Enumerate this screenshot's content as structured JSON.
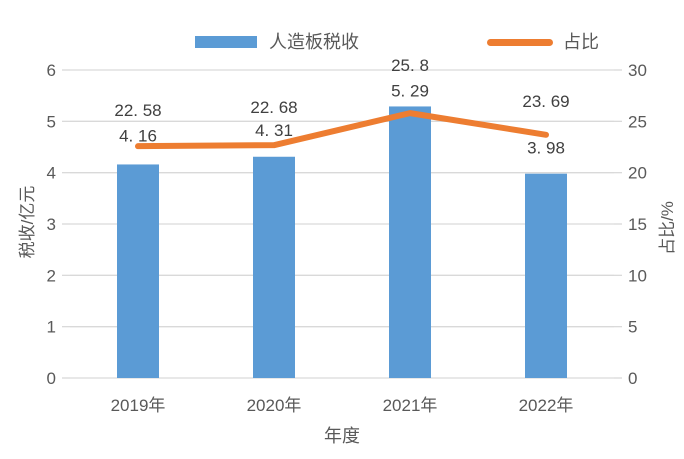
{
  "chart_data": {
    "type": "combo",
    "categories": [
      "2019年",
      "2020年",
      "2021年",
      "2022年"
    ],
    "series": [
      {
        "name": "人造板税收",
        "type": "bar",
        "axis": "left",
        "values": [
          4.16,
          4.31,
          5.29,
          3.98
        ],
        "color": "#5B9BD5"
      },
      {
        "name": "占比",
        "type": "line",
        "axis": "right",
        "values": [
          22.58,
          22.68,
          25.8,
          23.69
        ],
        "color": "#ED7D31"
      }
    ],
    "x_axis": {
      "title": "年度"
    },
    "left_axis": {
      "title": "税收/亿元",
      "min": 0,
      "max": 6,
      "step": 1,
      "tick_labels": [
        "0",
        "1",
        "2",
        "3",
        "4",
        "5",
        "6"
      ]
    },
    "right_axis": {
      "title": "占比/%",
      "min": 0,
      "max": 30,
      "step": 5,
      "tick_labels": [
        "0",
        "5",
        "10",
        "15",
        "20",
        "25",
        "30"
      ]
    },
    "grid": "horizontal",
    "legend_position": "top",
    "data_labels": true
  },
  "colors": {
    "bar": "#5B9BD5",
    "line": "#ED7D31",
    "gridline": "#D9D9D9",
    "axis_text": "#595959",
    "data_label_text": "#404040",
    "background": "#FFFFFF"
  }
}
